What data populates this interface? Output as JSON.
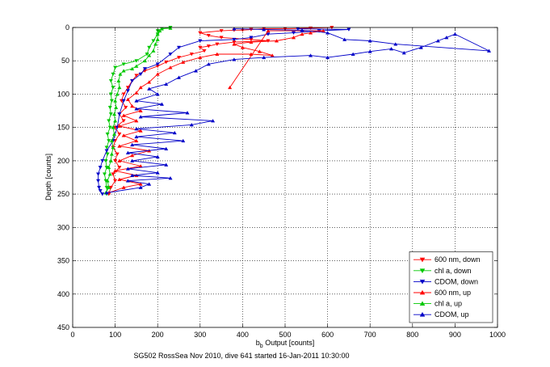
{
  "chart_data": {
    "type": "scatter",
    "title": "",
    "xlabel": "b_b Output [counts]",
    "xlabel_main": "b",
    "xlabel_sub": "b",
    "xlabel_rest": " Output [counts]",
    "ylabel": "Depth [counts]",
    "caption": "SG502 RossSea Nov 2010, dive 641 started 16-Jan-2011 10:30:00",
    "xlim": [
      0,
      1000
    ],
    "ylim": [
      450,
      0
    ],
    "y_reversed": true,
    "grid": true,
    "grid_style": "dotted",
    "legend_position": "bottom-right",
    "xticks": [
      "0",
      "100",
      "200",
      "300",
      "400",
      "500",
      "600",
      "700",
      "800",
      "900",
      "1000"
    ],
    "yticks": [
      "0",
      "50",
      "100",
      "150",
      "200",
      "250",
      "300",
      "350",
      "400",
      "450"
    ],
    "series": [
      {
        "name": "600 nm, down",
        "color": "#ff0000",
        "marker": "triangle-down",
        "points": [
          [
            610,
            0
          ],
          [
            560,
            1
          ],
          [
            500,
            2
          ],
          [
            450,
            2
          ],
          [
            420,
            3
          ],
          [
            400,
            4
          ],
          [
            380,
            4
          ],
          [
            350,
            5
          ],
          [
            300,
            8
          ],
          [
            320,
            12
          ],
          [
            350,
            15
          ],
          [
            420,
            18
          ],
          [
            460,
            20
          ],
          [
            380,
            22
          ],
          [
            340,
            25
          ],
          [
            320,
            28
          ],
          [
            300,
            30
          ],
          [
            310,
            35
          ],
          [
            280,
            40
          ],
          [
            250,
            45
          ],
          [
            220,
            52
          ],
          [
            200,
            58
          ],
          [
            170,
            65
          ],
          [
            150,
            72
          ],
          [
            140,
            80
          ],
          [
            130,
            90
          ],
          [
            120,
            100
          ],
          [
            115,
            110
          ],
          [
            125,
            120
          ],
          [
            110,
            130
          ],
          [
            120,
            140
          ],
          [
            100,
            150
          ],
          [
            110,
            160
          ],
          [
            100,
            170
          ],
          [
            95,
            180
          ],
          [
            105,
            190
          ],
          [
            100,
            200
          ],
          [
            110,
            210
          ],
          [
            95,
            220
          ],
          [
            100,
            230
          ],
          [
            90,
            240
          ],
          [
            85,
            250
          ]
        ]
      },
      {
        "name": "chl a, down",
        "color": "#00c800",
        "marker": "triangle-down",
        "points": [
          [
            230,
            0
          ],
          [
            210,
            2
          ],
          [
            200,
            5
          ],
          [
            200,
            10
          ],
          [
            190,
            20
          ],
          [
            180,
            30
          ],
          [
            175,
            40
          ],
          [
            150,
            50
          ],
          [
            120,
            55
          ],
          [
            100,
            60
          ],
          [
            95,
            70
          ],
          [
            90,
            80
          ],
          [
            95,
            90
          ],
          [
            90,
            100
          ],
          [
            92,
            110
          ],
          [
            88,
            120
          ],
          [
            90,
            130
          ],
          [
            85,
            140
          ],
          [
            88,
            150
          ],
          [
            82,
            160
          ],
          [
            85,
            170
          ],
          [
            80,
            180
          ],
          [
            82,
            190
          ],
          [
            78,
            200
          ],
          [
            80,
            210
          ],
          [
            75,
            220
          ],
          [
            78,
            230
          ],
          [
            80,
            240
          ],
          [
            80,
            250
          ]
        ]
      },
      {
        "name": "CDOM, down",
        "color": "#0000c8",
        "marker": "triangle-down",
        "points": [
          [
            530,
            2
          ],
          [
            650,
            3
          ],
          [
            580,
            5
          ],
          [
            520,
            8
          ],
          [
            460,
            10
          ],
          [
            420,
            15
          ],
          [
            380,
            18
          ],
          [
            300,
            20
          ],
          [
            250,
            30
          ],
          [
            230,
            40
          ],
          [
            200,
            55
          ],
          [
            170,
            62
          ],
          [
            160,
            70
          ],
          [
            140,
            80
          ],
          [
            130,
            95
          ],
          [
            120,
            110
          ],
          [
            110,
            130
          ],
          [
            105,
            150
          ],
          [
            95,
            170
          ],
          [
            80,
            185
          ],
          [
            70,
            200
          ],
          [
            65,
            210
          ],
          [
            60,
            220
          ],
          [
            60,
            230
          ],
          [
            62,
            240
          ],
          [
            65,
            245
          ],
          [
            70,
            250
          ]
        ]
      },
      {
        "name": "600 nm, up",
        "color": "#ff0000",
        "marker": "triangle-up",
        "points": [
          [
            85,
            248
          ],
          [
            120,
            240
          ],
          [
            160,
            235
          ],
          [
            110,
            228
          ],
          [
            150,
            222
          ],
          [
            100,
            215
          ],
          [
            160,
            208
          ],
          [
            110,
            200
          ],
          [
            140,
            192
          ],
          [
            180,
            185
          ],
          [
            110,
            178
          ],
          [
            150,
            170
          ],
          [
            120,
            162
          ],
          [
            160,
            155
          ],
          [
            110,
            148
          ],
          [
            150,
            140
          ],
          [
            120,
            132
          ],
          [
            160,
            125
          ],
          [
            140,
            118
          ],
          [
            130,
            108
          ],
          [
            150,
            98
          ],
          [
            160,
            90
          ],
          [
            180,
            82
          ],
          [
            200,
            70
          ],
          [
            230,
            60
          ],
          [
            260,
            52
          ],
          [
            300,
            45
          ],
          [
            340,
            40
          ],
          [
            420,
            40
          ],
          [
            470,
            42
          ],
          [
            440,
            36
          ],
          [
            400,
            30
          ],
          [
            380,
            25
          ],
          [
            420,
            22
          ],
          [
            480,
            20
          ],
          [
            520,
            15
          ],
          [
            540,
            10
          ],
          [
            560,
            8
          ],
          [
            590,
            5
          ],
          [
            460,
            5
          ],
          [
            370,
            90
          ]
        ]
      },
      {
        "name": "chl a, up",
        "color": "#00c800",
        "marker": "triangle-up",
        "points": [
          [
            78,
            248
          ],
          [
            85,
            240
          ],
          [
            82,
            230
          ],
          [
            88,
            220
          ],
          [
            85,
            210
          ],
          [
            90,
            200
          ],
          [
            92,
            190
          ],
          [
            95,
            180
          ],
          [
            92,
            170
          ],
          [
            98,
            160
          ],
          [
            95,
            150
          ],
          [
            100,
            140
          ],
          [
            98,
            130
          ],
          [
            102,
            120
          ],
          [
            100,
            110
          ],
          [
            105,
            100
          ],
          [
            110,
            90
          ],
          [
            108,
            80
          ],
          [
            112,
            70
          ],
          [
            120,
            65
          ],
          [
            140,
            62
          ],
          [
            150,
            58
          ],
          [
            170,
            50
          ],
          [
            180,
            42
          ],
          [
            190,
            35
          ],
          [
            195,
            25
          ],
          [
            200,
            18
          ],
          [
            200,
            10
          ],
          [
            205,
            5
          ],
          [
            210,
            2
          ],
          [
            230,
            1
          ]
        ]
      },
      {
        "name": "CDOM, up",
        "color": "#0000c8",
        "marker": "triangle-up",
        "points": [
          [
            80,
            248
          ],
          [
            160,
            240
          ],
          [
            180,
            235
          ],
          [
            130,
            230
          ],
          [
            230,
            226
          ],
          [
            140,
            222
          ],
          [
            200,
            218
          ],
          [
            130,
            212
          ],
          [
            220,
            206
          ],
          [
            140,
            200
          ],
          [
            200,
            194
          ],
          [
            130,
            188
          ],
          [
            220,
            182
          ],
          [
            140,
            176
          ],
          [
            260,
            170
          ],
          [
            150,
            164
          ],
          [
            240,
            158
          ],
          [
            150,
            152
          ],
          [
            280,
            146
          ],
          [
            330,
            140
          ],
          [
            160,
            134
          ],
          [
            270,
            128
          ],
          [
            150,
            122
          ],
          [
            210,
            115
          ],
          [
            150,
            110
          ],
          [
            200,
            100
          ],
          [
            180,
            92
          ],
          [
            220,
            85
          ],
          [
            250,
            75
          ],
          [
            290,
            65
          ],
          [
            320,
            55
          ],
          [
            380,
            48
          ],
          [
            450,
            45
          ],
          [
            560,
            42
          ],
          [
            600,
            45
          ],
          [
            660,
            40
          ],
          [
            700,
            36
          ],
          [
            750,
            32
          ],
          [
            780,
            38
          ],
          [
            820,
            30
          ],
          [
            860,
            20
          ],
          [
            880,
            15
          ],
          [
            900,
            10
          ],
          [
            980,
            35
          ],
          [
            760,
            25
          ],
          [
            700,
            20
          ],
          [
            640,
            18
          ],
          [
            600,
            8
          ],
          [
            540,
            4
          ],
          [
            450,
            3
          ],
          [
            380,
            2
          ]
        ]
      }
    ]
  }
}
